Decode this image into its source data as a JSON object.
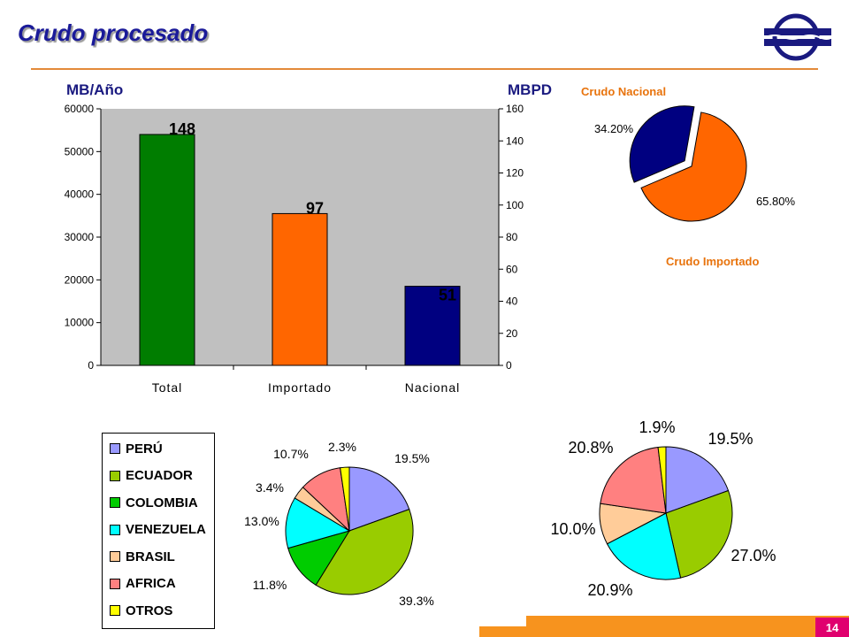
{
  "title": "Crudo procesado",
  "page_number": "14",
  "units": {
    "left": "MB/Año",
    "right": "MBPD"
  },
  "colors": {
    "accent": "#e38a3a",
    "title": "#1a1a99",
    "footer": "#f7931e",
    "page_badge": "#e0006e"
  },
  "pie_labels": {
    "nacional": "Crudo Nacional",
    "importado": "Crudo Importado"
  },
  "chart_data": [
    {
      "type": "bar",
      "categories": [
        "Total",
        "Importado",
        "Nacional"
      ],
      "values": [
        54000,
        35500,
        18500
      ],
      "data_labels": [
        "148",
        "97",
        "51"
      ],
      "colors": [
        "#007d00",
        "#ff6600",
        "#000080"
      ],
      "ylim": [
        0,
        60000
      ],
      "yticks": [
        "0",
        "10000",
        "20000",
        "30000",
        "40000",
        "50000",
        "60000"
      ],
      "y2lim": [
        0,
        160
      ],
      "y2ticks": [
        "0",
        "20",
        "40",
        "60",
        "80",
        "100",
        "120",
        "140",
        "160"
      ],
      "grid": false
    },
    {
      "type": "pie",
      "values": [
        65.8,
        34.2
      ],
      "labels": [
        "65.80%",
        "34.20%"
      ],
      "colors": [
        "#ff6600",
        "#000080"
      ]
    },
    {
      "type": "pie",
      "categories": [
        "PERÚ",
        "ECUADOR",
        "COLOMBIA",
        "VENEZUELA",
        "BRASIL",
        "AFRICA",
        "OTROS"
      ],
      "values": [
        19.5,
        39.3,
        11.8,
        13.0,
        3.4,
        10.7,
        2.3
      ],
      "labels": [
        "19.5%",
        "39.3%",
        "11.8%",
        "13.0%",
        "3.4%",
        "10.7%",
        "2.3%"
      ],
      "colors": [
        "#9999ff",
        "#99cc00",
        "#00cc00",
        "#00ffff",
        "#ffcc99",
        "#ff8080",
        "#ffff00"
      ],
      "legend": "left"
    },
    {
      "type": "pie",
      "values": [
        19.5,
        27.0,
        20.9,
        10.0,
        20.8,
        1.9
      ],
      "labels": [
        "19.5%",
        "27.0%",
        "20.9%",
        "10.0%",
        "20.8%",
        "1.9%"
      ],
      "colors": [
        "#9999ff",
        "#99cc00",
        "#00ffff",
        "#ffcc99",
        "#ff8080",
        "#ffff00"
      ]
    }
  ]
}
